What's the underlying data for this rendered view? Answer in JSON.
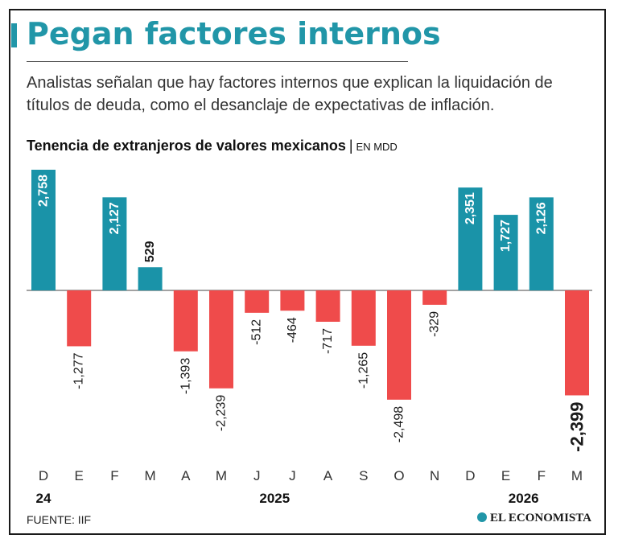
{
  "header": {
    "title": "Pegan factores internos",
    "subtitle": "Analistas señalan que hay factores internos que explican la liquidación de títulos de deuda, como el desanclaje de expectativas de inflación."
  },
  "colors": {
    "accent": "#2196a8",
    "positive": "#1a93a8",
    "negative": "#ef4b4b",
    "text": "#1a1a1a"
  },
  "chart_data": {
    "type": "bar",
    "title": "Tenencia de extranjeros de valores mexicanos",
    "separator": "|",
    "unit": "EN MDD",
    "categories": [
      "D",
      "E",
      "F",
      "M",
      "A",
      "M",
      "J",
      "J",
      "A",
      "S",
      "O",
      "N",
      "D",
      "E",
      "F",
      "M"
    ],
    "values": [
      2758,
      -1277,
      2127,
      529,
      -1393,
      -2239,
      -512,
      -464,
      -717,
      -1265,
      -2498,
      -329,
      2351,
      1727,
      2126,
      -2399
    ],
    "value_labels": [
      "2,758",
      "-1,277",
      "2,127",
      "529",
      "-1,393",
      "-2,239",
      "-512",
      "-464",
      "-717",
      "-1,265",
      "-2,498",
      "-329",
      "2,351",
      "1,727",
      "2,126",
      "-2,399"
    ],
    "highlight_last": true,
    "year_labels": [
      {
        "label": "24",
        "index": 0
      },
      {
        "label": "2025",
        "index": 6.5
      },
      {
        "label": "2026",
        "index": 13.5
      }
    ],
    "ylim": [
      -2500,
      2800
    ],
    "xlabel": "",
    "ylabel": ""
  },
  "footer": {
    "source": "FUENTE: IIF",
    "brand": "EL ECONOMISTA"
  }
}
